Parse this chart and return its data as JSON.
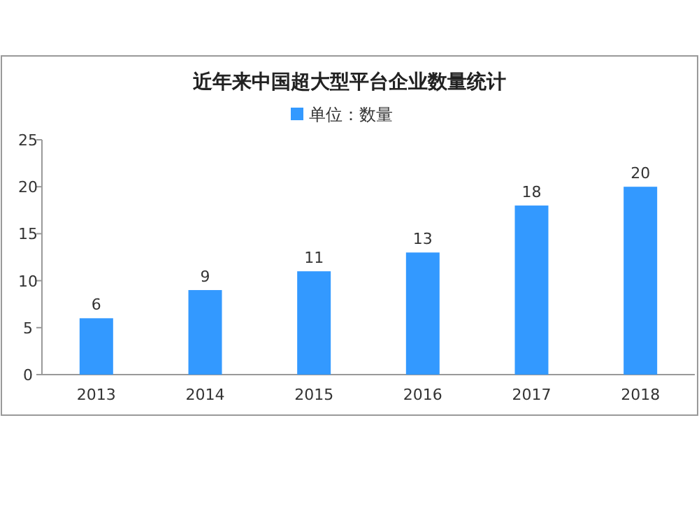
{
  "chart_data": {
    "type": "bar",
    "title": "近年来中国超大型平台企业数量统计",
    "categories": [
      "2013",
      "2014",
      "2015",
      "2016",
      "2017",
      "2018"
    ],
    "series": [
      {
        "name": "单位：数量",
        "color": "#3399ff",
        "values": [
          6,
          9,
          11,
          13,
          18,
          20
        ]
      }
    ],
    "ylim": [
      0,
      25
    ],
    "yticks": [
      0,
      5,
      10,
      15,
      20,
      25
    ],
    "data_labels": true,
    "legend": "top",
    "grid": false
  }
}
